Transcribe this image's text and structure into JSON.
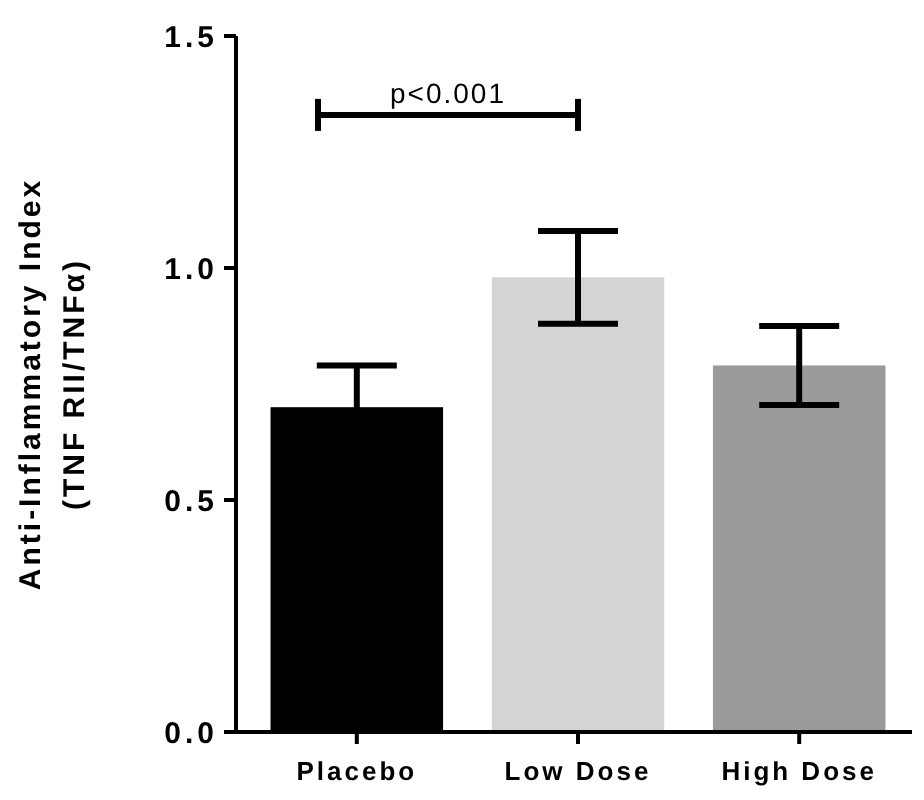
{
  "chart_data": {
    "type": "bar",
    "ylabel": "Anti-Inflammatory Index\n(TNF RII/TNFα)",
    "categories": [
      "Placebo",
      "Low Dose",
      "High Dose"
    ],
    "values": [
      0.7,
      0.98,
      0.79
    ],
    "colors": [
      "#000000",
      "#d4d4d4",
      "#9a9a9a"
    ],
    "errors": [
      0.09,
      0.1,
      0.085
    ],
    "ylim": [
      0,
      1.5
    ],
    "yticks": [
      {
        "value": 0,
        "label": "0.0"
      },
      {
        "value": 0.5,
        "label": "0.5"
      },
      {
        "value": 1,
        "label": "1.0"
      },
      {
        "value": 1.5,
        "label": "1.5"
      }
    ],
    "annotations": [
      "p<0.001"
    ]
  }
}
